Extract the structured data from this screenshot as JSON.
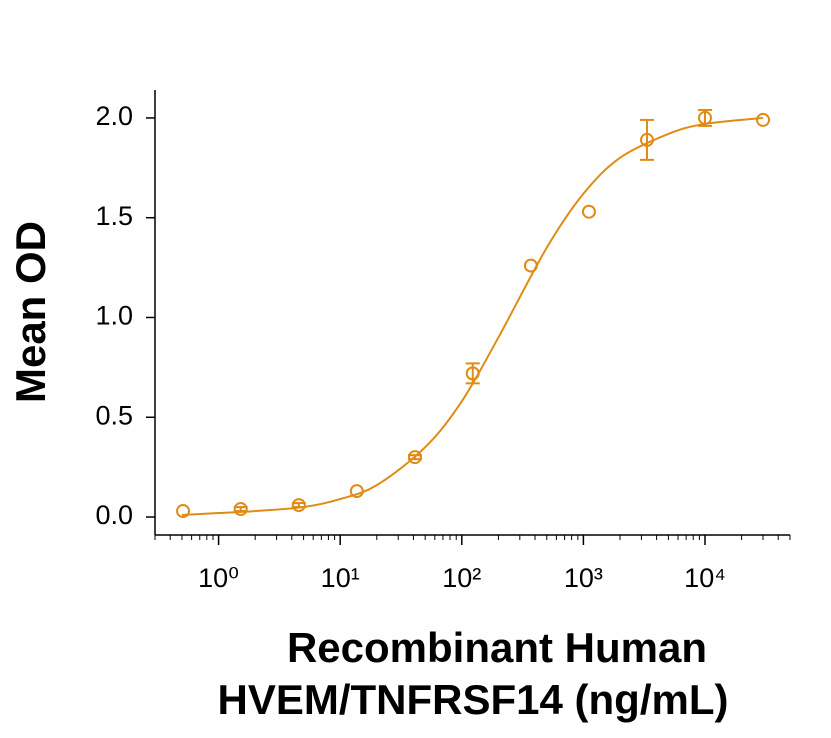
{
  "chart_data": {
    "type": "scatter",
    "xlabel": [
      "Recombinant Human",
      "HVEM/TNFRSF14 (ng/mL)"
    ],
    "ylabel": "Mean OD",
    "xscale": "log",
    "color": "#e08b16",
    "xlim": [
      0.3,
      50000
    ],
    "xticks": [
      {
        "value": 1,
        "label": "10⁰"
      },
      {
        "value": 10,
        "label": "10¹"
      },
      {
        "value": 100,
        "label": "10²"
      },
      {
        "value": 1000,
        "label": "10³"
      },
      {
        "value": 10000,
        "label": "10⁴"
      }
    ],
    "ylim": [
      -0.09,
      2.14
    ],
    "yticks": [
      {
        "value": 0,
        "label": "0.0"
      },
      0.5,
      {
        "value": 1,
        "label": "1.0"
      },
      1.5,
      {
        "value": 2,
        "label": "2.0"
      }
    ],
    "points": {
      "x": [
        0.51,
        1.52,
        4.57,
        13.7,
        41.2,
        123,
        370,
        1111,
        3333,
        10000,
        30000
      ],
      "values": [
        0.03,
        0.04,
        0.06,
        0.13,
        0.3,
        0.72,
        1.26,
        1.53,
        1.89,
        2.0,
        1.99
      ],
      "errors": [
        null,
        0.01,
        0.01,
        null,
        0.01,
        0.05,
        null,
        null,
        0.1,
        0.04,
        null
      ]
    },
    "fit": {
      "x": [
        0.5,
        1,
        2,
        5,
        10,
        20,
        50,
        100,
        200,
        500,
        1000,
        2000,
        5000,
        10000,
        30000
      ],
      "values": [
        0.01,
        0.02,
        0.03,
        0.05,
        0.09,
        0.16,
        0.35,
        0.58,
        0.9,
        1.35,
        1.62,
        1.8,
        1.92,
        1.97,
        2.0
      ]
    }
  }
}
